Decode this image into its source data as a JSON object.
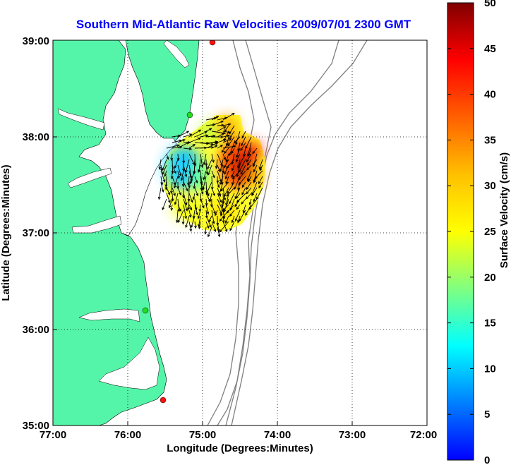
{
  "title": "Southern Mid-Atlantic Raw Velocities 2009/07/01 2300 GMT",
  "colors": {
    "title": "#0000ff",
    "land": "#55f5a9",
    "water": "#ffffff",
    "bathymetry": "#7f7f7f",
    "vector": "#000000",
    "station_green": "#22dd22",
    "station_red": "#ff1111",
    "grid": "#000000"
  },
  "map": {
    "xlabel": "Longitude (Degrees:Minutes)",
    "ylabel": "Latitude (Degrees:Minutes)",
    "x_ticks": [
      "77:00",
      "76:00",
      "75:00",
      "74:00",
      "73:00",
      "72:00"
    ],
    "y_ticks": [
      "39:00",
      "38:00",
      "37:00",
      "36:00",
      "35:00"
    ],
    "lon_range": [
      -77,
      -72
    ],
    "lat_range": [
      35,
      39
    ],
    "grid": "dotted",
    "stations": [
      {
        "color": "red",
        "lon": -74.85,
        "lat": 38.97
      },
      {
        "color": "green",
        "lon": -75.17,
        "lat": 38.22
      },
      {
        "color": "green",
        "lon": -75.75,
        "lat": 36.18
      },
      {
        "color": "red",
        "lon": -75.52,
        "lat": 35.25
      }
    ]
  },
  "colorbar": {
    "label": "Surface Velocity (cm/s)",
    "ticks": [
      "0",
      "5",
      "10",
      "15",
      "20",
      "25",
      "30",
      "35",
      "40",
      "45",
      "50"
    ],
    "range": [
      0,
      50
    ],
    "colormap": "jet"
  },
  "chart_data": {
    "type": "heatmap",
    "title": "Southern Mid-Atlantic Raw Velocities 2009/07/01 2300 GMT",
    "xlabel": "Longitude (Degrees:Minutes)",
    "ylabel": "Latitude (Degrees:Minutes)",
    "colorbar_label": "Surface Velocity (cm/s)",
    "value_range": [
      0,
      50
    ],
    "units": "cm/s",
    "velocity_field": [
      {
        "lon": -74.7,
        "lat": 38.1,
        "speed": 38
      },
      {
        "lon": -74.5,
        "lat": 37.85,
        "speed": 44
      },
      {
        "lon": -74.4,
        "lat": 37.65,
        "speed": 48
      },
      {
        "lon": -74.6,
        "lat": 37.6,
        "speed": 42
      },
      {
        "lon": -74.8,
        "lat": 37.55,
        "speed": 33
      },
      {
        "lon": -74.9,
        "lat": 37.7,
        "speed": 26
      },
      {
        "lon": -75.1,
        "lat": 37.9,
        "speed": 22
      },
      {
        "lon": -75.2,
        "lat": 37.6,
        "speed": 9
      },
      {
        "lon": -75.3,
        "lat": 37.75,
        "speed": 11
      },
      {
        "lon": -75.35,
        "lat": 37.35,
        "speed": 17
      },
      {
        "lon": -75.05,
        "lat": 37.2,
        "speed": 24
      },
      {
        "lon": -74.75,
        "lat": 37.15,
        "speed": 28
      },
      {
        "lon": -74.5,
        "lat": 37.3,
        "speed": 31
      },
      {
        "lon": -74.3,
        "lat": 37.45,
        "speed": 36
      }
    ]
  }
}
